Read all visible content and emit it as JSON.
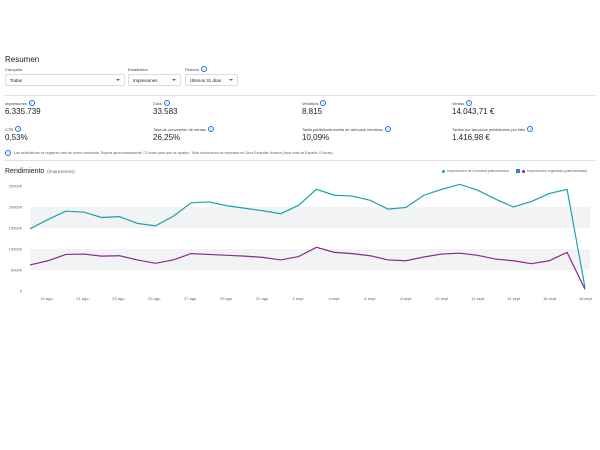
{
  "title": "Resumen",
  "filters": [
    {
      "label": "Campaña",
      "value": "Todas",
      "info": false
    },
    {
      "label": "Estadística",
      "value": "Impresiones",
      "info": false
    },
    {
      "label": "Periodo",
      "value": "Últimos 31 días",
      "info": true
    }
  ],
  "metrics_row1": [
    {
      "label": "Impresiones",
      "value": "6.335.739"
    },
    {
      "label": "Clics",
      "value": "33.583"
    },
    {
      "label": "Vendidos",
      "value": "8.815"
    },
    {
      "label": "Ventas",
      "value": "14.043,71 €"
    }
  ],
  "metrics_row2": [
    {
      "label": "CTR",
      "value": "0,53%"
    },
    {
      "label": "Tasa de conversión de ventas",
      "value": "26,25%"
    },
    {
      "label": "Tarifa publicitaria media de artículos vendidos",
      "value": "10,09%"
    },
    {
      "label": "Tarifas por anuncios publicitarios por fallo",
      "value": "1.416,98 €"
    }
  ],
  "note": "Las estadísticas se registran casi de forma inmediata. Espera aproximadamente 72 horas para que se ajusten. Toda información se reportará en Zona Estándar Horaria (hora local de España: 0 horas).",
  "rendimiento": {
    "title": "Rendimiento",
    "subtitle": "(Impresiones)"
  },
  "legend": {
    "series1": "Impresiones de Anuncios patrocinados",
    "series2": "Impresiones orgánicas (patrocinadas)"
  },
  "colors": {
    "series1": "#1aa3a8",
    "series2": "#8a2a8e",
    "accent": "#1a73e8"
  },
  "chart_data": {
    "type": "line",
    "y_ticks": [
      "0",
      "50000",
      "100000",
      "150000",
      "200000",
      "250000"
    ],
    "ylim": [
      0,
      250000
    ],
    "x_ticks": [
      "19 ago.",
      "21 ago.",
      "23 ago.",
      "25 ago.",
      "27 ago.",
      "29 ago.",
      "31 ago.",
      "2 sept.",
      "4 sept.",
      "6 sept.",
      "8 sept.",
      "10 sept.",
      "12 sept.",
      "14 sept.",
      "16 sept.",
      "18 sept."
    ],
    "series": [
      {
        "values": [
          148000,
          170000,
          190000,
          188000,
          175000,
          177000,
          161000,
          155000,
          178000,
          210000,
          212000,
          203000,
          197000,
          191000,
          184000,
          204000,
          242000,
          228000,
          226000,
          216000,
          195000,
          199000,
          228000,
          242000,
          254000,
          240000,
          219000,
          200000,
          213000,
          232000,
          242000,
          8000
        ]
      },
      {
        "values": [
          62000,
          72000,
          87000,
          88000,
          83000,
          84000,
          74000,
          66000,
          74000,
          89000,
          87000,
          85000,
          83000,
          80000,
          74000,
          82000,
          104000,
          92000,
          89000,
          84000,
          74000,
          72000,
          81000,
          88000,
          90000,
          85000,
          76000,
          72000,
          65000,
          72000,
          92000,
          4000
        ]
      }
    ]
  }
}
